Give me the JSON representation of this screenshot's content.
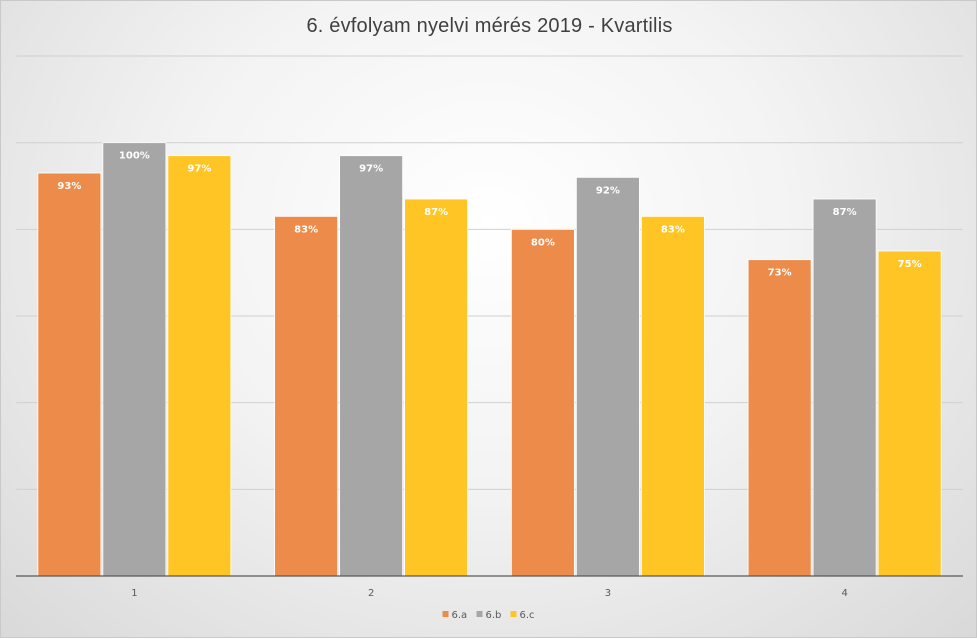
{
  "chart_data": {
    "type": "bar",
    "title": "6. évfolyam nyelvi mérés 2019 - Kvartilis",
    "categories": [
      "1",
      "2",
      "3",
      "4"
    ],
    "series": [
      {
        "name": "6.a",
        "color": "#ED8B4B",
        "values": [
          93,
          83,
          80,
          73
        ],
        "labels": [
          "93%",
          "83%",
          "80%",
          "73%"
        ]
      },
      {
        "name": "6.b",
        "color": "#A6A6A6",
        "values": [
          100,
          97,
          92,
          87
        ],
        "labels": [
          "100%",
          "97%",
          "92%",
          "87%"
        ]
      },
      {
        "name": "6.c",
        "color": "#FFC524",
        "values": [
          97,
          87,
          83,
          75
        ],
        "labels": [
          "97%",
          "87%",
          "83%",
          "75%"
        ]
      }
    ],
    "ylim": [
      0,
      120
    ],
    "grid": true,
    "legend": "bottom"
  }
}
